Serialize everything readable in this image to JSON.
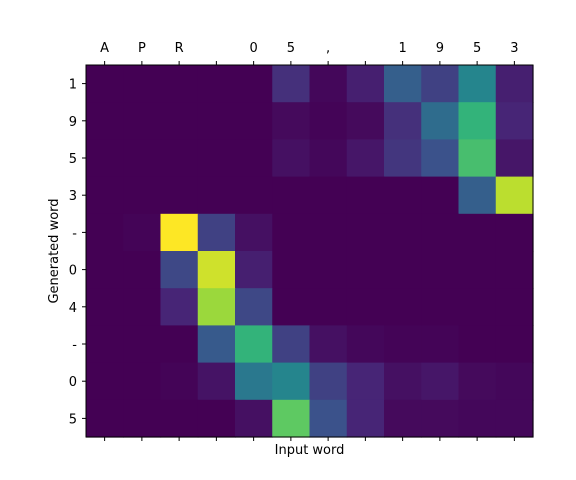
{
  "chart_data": {
    "type": "heatmap",
    "xlabel": "Input word",
    "ylabel": "Generated word",
    "x_categories": [
      "A",
      "P",
      "R",
      " ",
      "0",
      "5",
      ",",
      " ",
      "1",
      "9",
      "5",
      "3"
    ],
    "y_categories": [
      "1",
      "9",
      "5",
      "3",
      "-",
      "0",
      "4",
      "-",
      "0",
      "5"
    ],
    "x_axis_position": "top",
    "colormap": "viridis",
    "value_range": [
      0,
      1
    ],
    "grid": false,
    "values": [
      [
        0.0,
        0.0,
        0.0,
        0.0,
        0.0,
        0.15,
        0.02,
        0.1,
        0.3,
        0.2,
        0.45,
        0.1
      ],
      [
        0.0,
        0.0,
        0.0,
        0.0,
        0.0,
        0.03,
        0.01,
        0.03,
        0.15,
        0.35,
        0.65,
        0.12
      ],
      [
        0.0,
        0.0,
        0.0,
        0.0,
        0.0,
        0.05,
        0.02,
        0.07,
        0.17,
        0.25,
        0.7,
        0.07
      ],
      [
        0.0,
        0.0,
        0.0,
        0.0,
        0.0,
        0.0,
        0.0,
        0.0,
        0.0,
        0.0,
        0.3,
        0.9
      ],
      [
        0.0,
        0.01,
        1.0,
        0.2,
        0.05,
        0.0,
        0.0,
        0.0,
        0.0,
        0.0,
        0.0,
        0.0
      ],
      [
        0.0,
        0.0,
        0.22,
        0.93,
        0.1,
        0.0,
        0.0,
        0.0,
        0.0,
        0.0,
        0.0,
        0.0
      ],
      [
        0.0,
        0.0,
        0.12,
        0.85,
        0.22,
        0.0,
        0.0,
        0.0,
        0.0,
        0.0,
        0.0,
        0.0
      ],
      [
        0.0,
        0.0,
        0.0,
        0.28,
        0.65,
        0.2,
        0.05,
        0.02,
        0.01,
        0.01,
        0.0,
        0.0
      ],
      [
        0.0,
        0.0,
        0.01,
        0.06,
        0.4,
        0.45,
        0.2,
        0.12,
        0.05,
        0.07,
        0.03,
        0.02
      ],
      [
        0.0,
        0.0,
        0.0,
        0.0,
        0.05,
        0.75,
        0.25,
        0.12,
        0.03,
        0.03,
        0.02,
        0.02
      ]
    ]
  }
}
